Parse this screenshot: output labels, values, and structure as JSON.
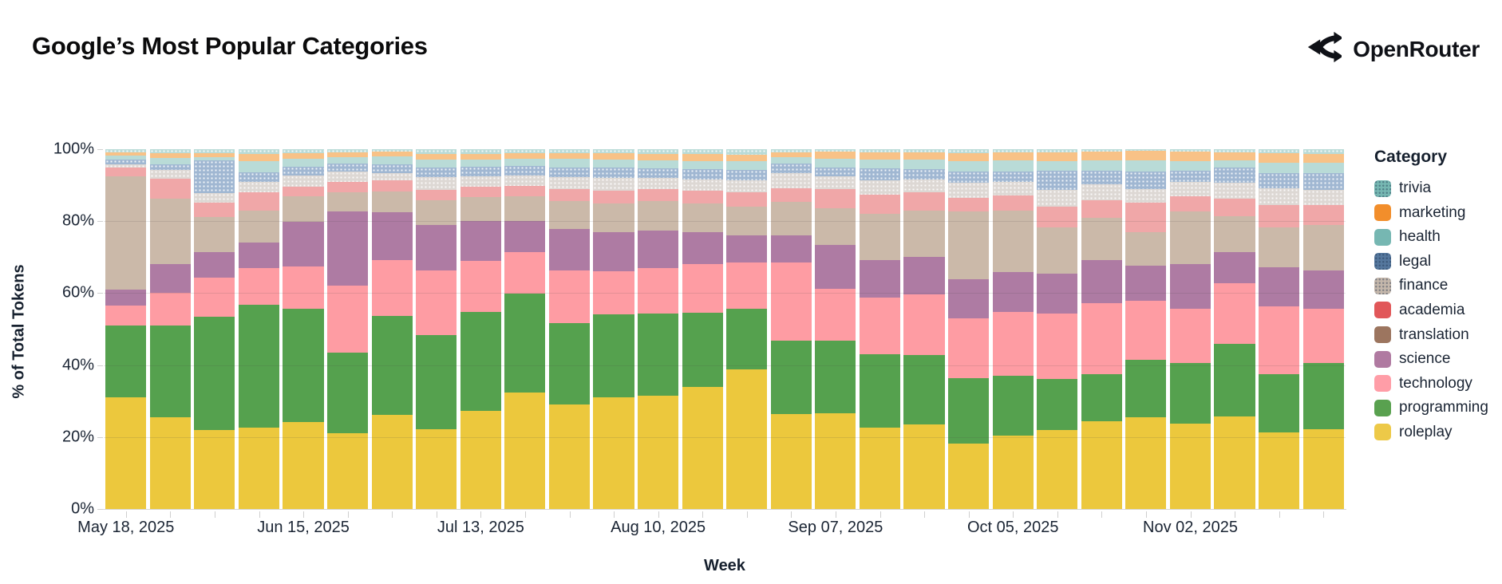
{
  "header": {
    "title": "Google’s Most Popular Categories",
    "brand": "OpenRouter"
  },
  "chart_data": {
    "type": "bar",
    "stacked": true,
    "grid": true,
    "legend_position": "right",
    "legend_title": "Category",
    "xlabel": "Week",
    "ylabel": "% of Total Tokens",
    "ylim": [
      0,
      100
    ],
    "yticks": [
      0,
      20,
      40,
      60,
      80,
      100
    ],
    "ytick_labels": [
      "0%",
      "20%",
      "40%",
      "60%",
      "80%",
      "100%"
    ],
    "x_tick_labels_shown": [
      "May 18, 2025",
      "Jun 15, 2025",
      "Jul 13, 2025",
      "Aug 10, 2025",
      "Sep 07, 2025",
      "Oct 05, 2025",
      "Nov 02, 2025"
    ],
    "x": [
      "May 18, 2025",
      "May 25, 2025",
      "Jun 01, 2025",
      "Jun 08, 2025",
      "Jun 15, 2025",
      "Jun 22, 2025",
      "Jun 29, 2025",
      "Jul 06, 2025",
      "Jul 13, 2025",
      "Jul 20, 2025",
      "Jul 27, 2025",
      "Aug 03, 2025",
      "Aug 10, 2025",
      "Aug 17, 2025",
      "Aug 24, 2025",
      "Aug 31, 2025",
      "Sep 07, 2025",
      "Sep 14, 2025",
      "Sep 21, 2025",
      "Sep 28, 2025",
      "Oct 05, 2025",
      "Oct 12, 2025",
      "Oct 19, 2025",
      "Oct 26, 2025",
      "Nov 02, 2025",
      "Nov 09, 2025",
      "Nov 16, 2025",
      "Nov 23, 2025"
    ],
    "stack_order_bottom_to_top": [
      "roleplay",
      "programming",
      "technology",
      "science",
      "translation",
      "academia",
      "finance",
      "legal",
      "health",
      "marketing",
      "trivia"
    ],
    "series": [
      {
        "name": "trivia",
        "legend_color": "#76B7B2",
        "bar_color": "#B9DBD7",
        "pattern": "dots",
        "values": [
          0.8,
          1.2,
          1.0,
          1.4,
          1.0,
          0.8,
          0.7,
          1.4,
          1.3,
          1.0,
          1.0,
          1.2,
          1.3,
          1.4,
          1.5,
          0.8,
          0.6,
          0.8,
          0.8,
          1.0,
          0.8,
          0.8,
          0.7,
          0.5,
          0.7,
          0.8,
          1.0,
          1.3
        ]
      },
      {
        "name": "marketing",
        "legend_color": "#F28E2B",
        "bar_color": "#F8C287",
        "pattern": "none",
        "values": [
          0.9,
          1.2,
          1.1,
          1.8,
          1.6,
          1.4,
          1.3,
          1.4,
          1.5,
          1.6,
          1.7,
          1.6,
          1.7,
          1.8,
          1.8,
          1.5,
          2.0,
          2.0,
          2.1,
          2.3,
          2.3,
          2.5,
          2.4,
          2.6,
          2.6,
          2.3,
          2.8,
          2.5
        ]
      },
      {
        "name": "health",
        "legend_color": "#76B7B2",
        "bar_color": "#B9DBD7",
        "pattern": "none",
        "values": [
          1.1,
          1.8,
          1.0,
          3.3,
          2.2,
          1.7,
          2.1,
          2.2,
          2.0,
          2.0,
          2.3,
          2.2,
          2.2,
          2.3,
          2.4,
          1.7,
          2.5,
          2.4,
          2.7,
          2.8,
          3.0,
          2.6,
          2.8,
          3.2,
          2.6,
          2.0,
          2.9,
          2.9
        ]
      },
      {
        "name": "legal",
        "legend_color": "#55779D",
        "bar_color": "#A0B7D2",
        "pattern": "dots",
        "values": [
          1.5,
          1.5,
          9.0,
          2.5,
          2.6,
          2.4,
          2.6,
          2.8,
          2.8,
          2.7,
          2.8,
          3.0,
          2.8,
          3.0,
          3.0,
          2.7,
          2.5,
          3.4,
          2.8,
          3.2,
          2.9,
          5.5,
          3.9,
          4.7,
          3.2,
          4.3,
          4.1,
          4.7
        ]
      },
      {
        "name": "finance",
        "legend_color": "#C4B7AB",
        "bar_color": "#DDD8D4",
        "pattern": "dots",
        "values": [
          0.7,
          2.5,
          2.7,
          3.0,
          3.1,
          2.8,
          1.9,
          3.4,
          2.7,
          2.8,
          3.3,
          3.5,
          3.0,
          3.0,
          3.3,
          4.1,
          3.5,
          4.0,
          3.6,
          4.3,
          3.8,
          4.5,
          4.4,
          3.8,
          4.0,
          4.3,
          4.8,
          4.2
        ]
      },
      {
        "name": "academia",
        "legend_color": "#E15759",
        "bar_color": "#F0A7A8",
        "pattern": "none",
        "values": [
          2.5,
          5.5,
          4.0,
          5.0,
          2.6,
          2.9,
          3.2,
          3.0,
          3.0,
          3.0,
          3.3,
          3.5,
          3.5,
          3.5,
          4.0,
          3.8,
          5.4,
          5.4,
          5.1,
          3.6,
          4.3,
          5.8,
          4.9,
          8.3,
          4.1,
          4.9,
          6.1,
          5.5
        ]
      },
      {
        "name": "translation",
        "legend_color": "#9C755F",
        "bar_color": "#CBB9A9",
        "pattern": "none",
        "values": [
          31.5,
          18.3,
          9.7,
          9.0,
          7.1,
          5.2,
          5.8,
          6.8,
          6.6,
          6.8,
          7.7,
          8.0,
          8.0,
          8.0,
          8.0,
          9.4,
          10.1,
          12.8,
          12.9,
          18.9,
          17.1,
          12.8,
          11.8,
          9.2,
          14.7,
          9.9,
          11.0,
          12.7
        ]
      },
      {
        "name": "science",
        "legend_color": "#B07AA1",
        "bar_color": "#AE7BA3",
        "pattern": "none",
        "values": [
          4.5,
          8.0,
          7.2,
          7.0,
          12.5,
          20.7,
          13.2,
          12.8,
          11.1,
          8.6,
          11.7,
          11.0,
          10.5,
          9.0,
          7.5,
          7.5,
          12.1,
          10.5,
          10.4,
          10.9,
          11.0,
          11.2,
          11.8,
          9.9,
          12.4,
          8.7,
          10.9,
          10.5
        ]
      },
      {
        "name": "technology",
        "legend_color": "#FF9DA7",
        "bar_color": "#FE9CA3",
        "pattern": "none",
        "values": [
          5.5,
          9.0,
          10.9,
          10.2,
          11.6,
          18.6,
          15.6,
          17.9,
          14.2,
          11.7,
          14.5,
          11.8,
          12.7,
          13.4,
          12.8,
          21.8,
          14.6,
          15.7,
          16.7,
          16.7,
          17.8,
          18.2,
          19.8,
          16.4,
          15.2,
          16.8,
          18.9,
          15.1
        ]
      },
      {
        "name": "programming",
        "legend_color": "#59A14F",
        "bar_color": "#55A14E",
        "pattern": "none",
        "values": [
          20.0,
          25.5,
          31.4,
          34.2,
          31.5,
          22.4,
          27.5,
          26.1,
          27.6,
          27.5,
          22.7,
          23.2,
          22.9,
          20.7,
          16.8,
          20.4,
          20.0,
          20.4,
          19.4,
          18.2,
          16.7,
          14.1,
          13.0,
          15.8,
          16.8,
          20.3,
          16.1,
          18.4
        ]
      },
      {
        "name": "roleplay",
        "legend_color": "#EDC948",
        "bar_color": "#ECC83D",
        "pattern": "none",
        "values": [
          31.0,
          25.5,
          22.0,
          22.6,
          24.2,
          21.1,
          26.1,
          22.2,
          27.2,
          32.3,
          29.0,
          31.0,
          31.4,
          33.9,
          38.9,
          26.3,
          26.7,
          22.6,
          23.5,
          18.1,
          20.3,
          22.0,
          24.5,
          25.6,
          23.7,
          25.7,
          21.4,
          22.2
        ]
      }
    ]
  }
}
